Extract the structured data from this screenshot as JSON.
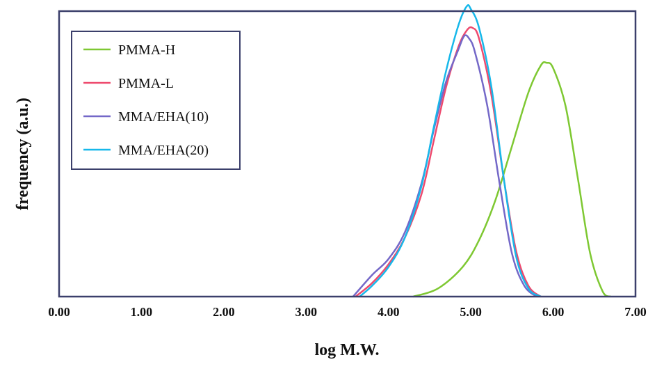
{
  "chart_data": {
    "type": "line",
    "title": "",
    "xlabel": "log M.W.",
    "ylabel": "frequency (a.u.)",
    "xlim": [
      0,
      7
    ],
    "ylim": [
      0,
      1
    ],
    "x_ticks": [
      "0.00",
      "1.00",
      "2.00",
      "3.00",
      "4.00",
      "5.00",
      "6.00",
      "7.00"
    ],
    "grid": false,
    "legend_position": "top-left",
    "series": [
      {
        "name": "PMMA-H",
        "color": "#7ec832",
        "x": [
          4.3,
          4.6,
          4.9,
          5.1,
          5.3,
          5.5,
          5.7,
          5.85,
          5.92,
          6.0,
          6.15,
          6.3,
          6.45,
          6.6,
          6.7
        ],
        "y": [
          0.0,
          0.03,
          0.11,
          0.21,
          0.36,
          0.56,
          0.76,
          0.86,
          0.87,
          0.85,
          0.71,
          0.44,
          0.16,
          0.02,
          0.0
        ]
      },
      {
        "name": "PMMA-L",
        "color": "#ee4a6e",
        "x": [
          3.6,
          3.8,
          4.0,
          4.2,
          4.4,
          4.55,
          4.7,
          4.85,
          4.95,
          5.02,
          5.1,
          5.25,
          5.4,
          5.55,
          5.7,
          5.85
        ],
        "y": [
          0.0,
          0.05,
          0.12,
          0.22,
          0.38,
          0.58,
          0.78,
          0.93,
          0.99,
          1.0,
          0.96,
          0.75,
          0.44,
          0.17,
          0.04,
          0.0
        ]
      },
      {
        "name": "MMA/EHA(10)",
        "color": "#7468c8",
        "x": [
          3.57,
          3.8,
          4.0,
          4.2,
          4.4,
          4.55,
          4.7,
          4.85,
          4.92,
          4.98,
          5.05,
          5.2,
          5.35,
          5.5,
          5.65,
          5.8
        ],
        "y": [
          0.0,
          0.08,
          0.14,
          0.24,
          0.42,
          0.62,
          0.8,
          0.92,
          0.97,
          0.96,
          0.91,
          0.71,
          0.42,
          0.16,
          0.04,
          0.0
        ]
      },
      {
        "name": "MMA/EHA(20)",
        "color": "#17b8ea",
        "x": [
          3.65,
          3.8,
          4.0,
          4.2,
          4.4,
          4.55,
          4.7,
          4.85,
          4.95,
          5.0,
          5.1,
          5.25,
          5.4,
          5.55,
          5.7,
          5.85
        ],
        "y": [
          0.0,
          0.04,
          0.11,
          0.22,
          0.41,
          0.63,
          0.84,
          1.01,
          1.08,
          1.07,
          1.0,
          0.78,
          0.44,
          0.15,
          0.03,
          0.0
        ]
      }
    ]
  }
}
